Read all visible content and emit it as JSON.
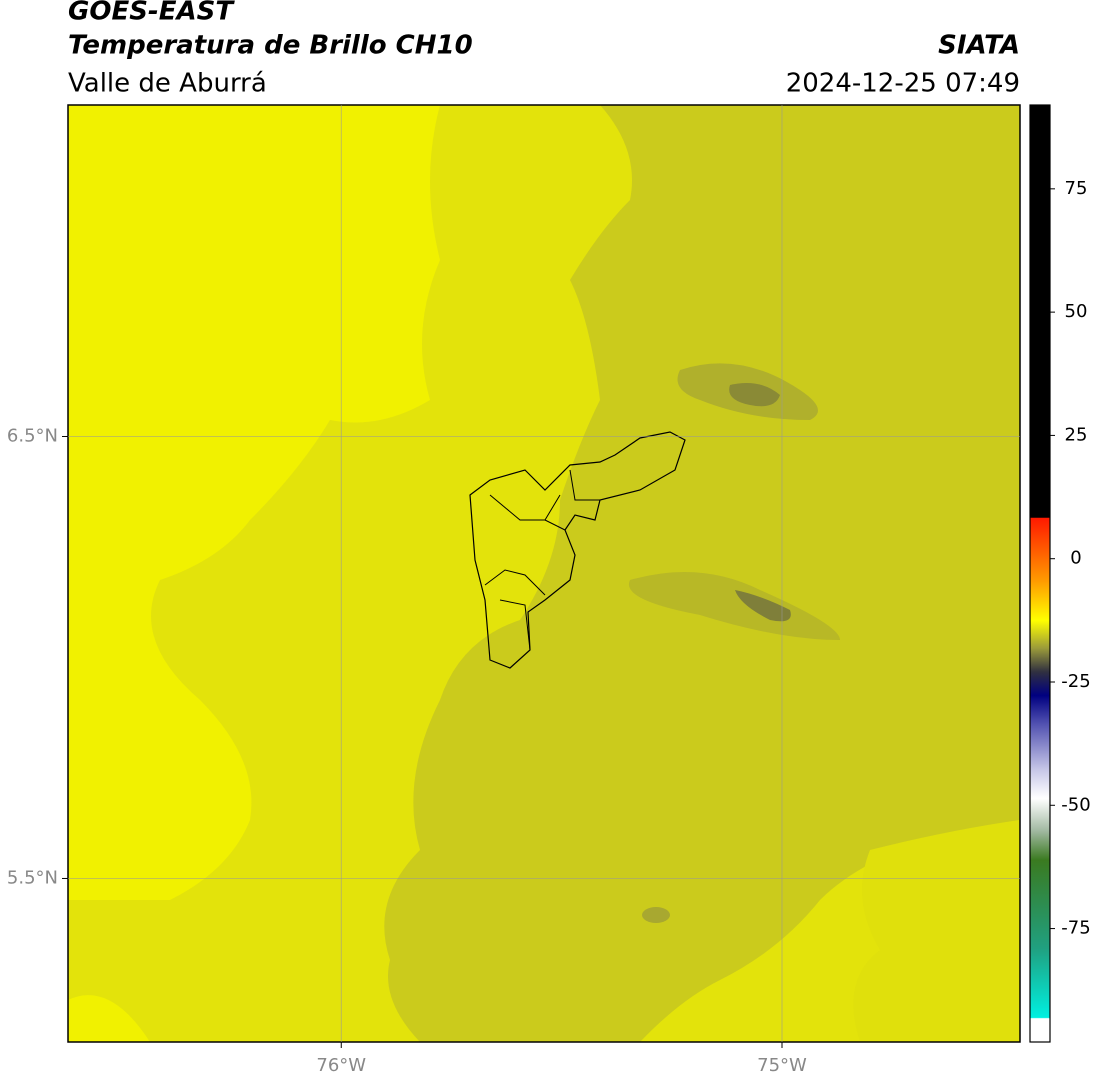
{
  "header": {
    "title": "GOES-EAST",
    "subtitle": "Temperatura de Brillo CH10",
    "region": "Valle de Aburrá",
    "source": "SIATA",
    "datetime": "2024-12-25 07:49"
  },
  "map": {
    "lonlim": [
      -76.62,
      -74.46
    ],
    "latlim": [
      5.13,
      7.25
    ],
    "lon_ticks": [
      {
        "value": -76,
        "label": "76°W"
      },
      {
        "value": -75,
        "label": "75°W"
      }
    ],
    "lat_ticks": [
      {
        "value": 6.5,
        "label": "6.5°N"
      },
      {
        "value": 5.5,
        "label": "5.5°N"
      }
    ],
    "grid": true,
    "colorbar": {
      "range": [
        -98,
        92
      ],
      "ticks": [
        75,
        50,
        25,
        0,
        -25,
        -50,
        -75
      ]
    }
  }
}
